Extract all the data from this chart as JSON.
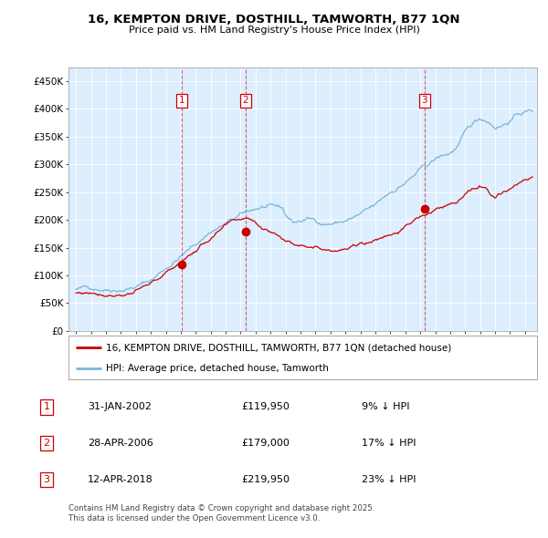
{
  "title": "16, KEMPTON DRIVE, DOSTHILL, TAMWORTH, B77 1QN",
  "subtitle": "Price paid vs. HM Land Registry's House Price Index (HPI)",
  "legend_line1": "16, KEMPTON DRIVE, DOSTHILL, TAMWORTH, B77 1QN (detached house)",
  "legend_line2": "HPI: Average price, detached house, Tamworth",
  "transactions": [
    {
      "num": 1,
      "date": "31-JAN-2002",
      "price": 119950,
      "pct": "9%",
      "year": 2002.08
    },
    {
      "num": 2,
      "date": "28-APR-2006",
      "price": 179000,
      "pct": "17%",
      "year": 2006.32
    },
    {
      "num": 3,
      "date": "12-APR-2018",
      "price": 219950,
      "pct": "23%",
      "year": 2018.28
    }
  ],
  "footer": "Contains HM Land Registry data © Crown copyright and database right 2025.\nThis data is licensed under the Open Government Licence v3.0.",
  "hpi_color": "#7ab4d8",
  "price_color": "#cc0000",
  "marker_color": "#cc0000",
  "chart_bg": "#ddeeff",
  "grid_color": "#ffffff",
  "background_color": "#ffffff",
  "ylim": [
    0,
    475000
  ],
  "xlim_start": 1994.5,
  "xlim_end": 2025.8,
  "yticks": [
    0,
    50000,
    100000,
    150000,
    200000,
    250000,
    300000,
    350000,
    400000,
    450000
  ],
  "ylabels": [
    "£0",
    "£50K",
    "£100K",
    "£150K",
    "£200K",
    "£250K",
    "£300K",
    "£350K",
    "£400K",
    "£450K"
  ],
  "xticks": [
    1995,
    1996,
    1997,
    1998,
    1999,
    2000,
    2001,
    2002,
    2003,
    2004,
    2005,
    2006,
    2007,
    2008,
    2009,
    2010,
    2011,
    2012,
    2013,
    2014,
    2015,
    2016,
    2017,
    2018,
    2019,
    2020,
    2021,
    2022,
    2023,
    2024,
    2025
  ]
}
